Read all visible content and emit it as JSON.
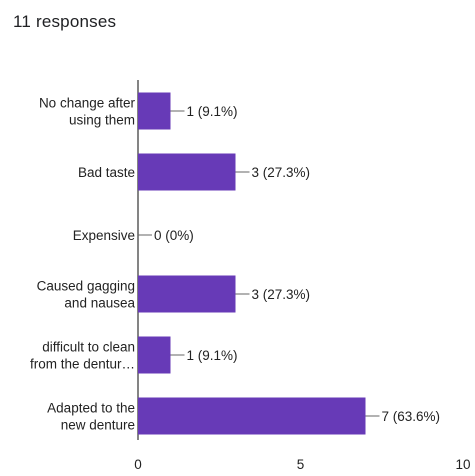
{
  "header": {
    "responses": "11 responses"
  },
  "colors": {
    "bar": "#673ab7",
    "axis": "#333333",
    "connector": "#666666"
  },
  "chart_data": {
    "type": "bar",
    "orientation": "horizontal",
    "categories": [
      [
        "No change after",
        "using them"
      ],
      [
        "Bad taste"
      ],
      [
        "Expensive"
      ],
      [
        "Caused gagging",
        "and nausea"
      ],
      [
        "difficult to clean",
        "from the dentur…"
      ],
      [
        "Adapted to the",
        "new denture"
      ]
    ],
    "values": [
      1,
      3,
      0,
      3,
      1,
      7
    ],
    "value_labels": [
      "1 (9.1%)",
      "3 (27.3%)",
      "0 (0%)",
      "3 (27.3%)",
      "1 (9.1%)",
      "7 (63.6%)"
    ],
    "xlim": [
      0,
      10
    ],
    "xticks": [
      "0",
      "5",
      "10"
    ],
    "grid": false,
    "legend": "none"
  }
}
